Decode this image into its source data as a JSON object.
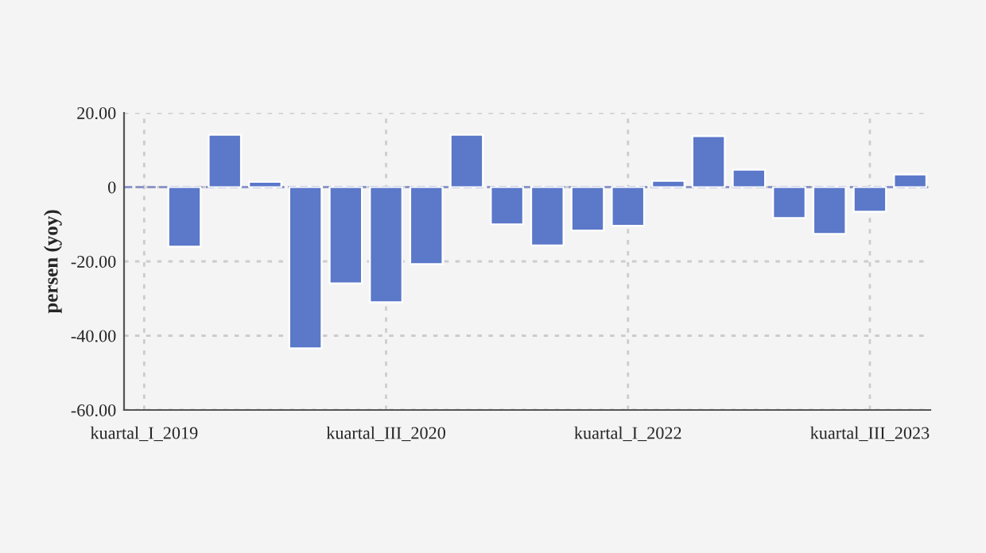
{
  "chart_data": {
    "type": "bar",
    "ylabel": "persen (yoy)",
    "categories": [
      "kuartal_I_2019",
      null,
      null,
      null,
      null,
      null,
      "kuartal_III_2020",
      null,
      null,
      null,
      null,
      null,
      "kuartal_I_2022",
      null,
      null,
      null,
      null,
      null,
      "kuartal_III_2023",
      null
    ],
    "values": [
      null,
      -16.0,
      14.1,
      1.4,
      -43.4,
      -25.9,
      -31.0,
      -20.7,
      14.1,
      -10.0,
      -15.7,
      -11.7,
      -10.4,
      1.7,
      13.7,
      4.7,
      -8.3,
      -12.6,
      -6.6,
      3.4
    ],
    "color": "#5b78c9",
    "ylim": [
      -60,
      20
    ],
    "yticks": [
      {
        "value": -60,
        "label": "-60.00"
      },
      {
        "value": -40,
        "label": "-40.00"
      },
      {
        "value": -20,
        "label": "-20.00"
      },
      0,
      {
        "value": 20,
        "label": "20.00"
      }
    ],
    "ref_lines": [
      {
        "axis": "y",
        "value": 0,
        "color": "#8c96c8",
        "line_style": "dashed"
      }
    ],
    "grid": true,
    "legend": false
  }
}
